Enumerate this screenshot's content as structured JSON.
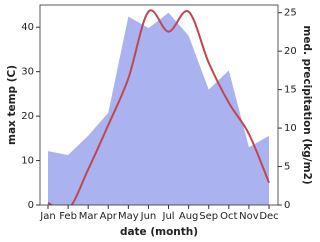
{
  "chart_data": {
    "type": "line",
    "x_label": "date (month)",
    "y_label": "max temp (C)",
    "y2_label": "med. precipitation (kg/m2)",
    "categories": [
      "Jan",
      "Feb",
      "Mar",
      "Apr",
      "May",
      "Jun",
      "Jul",
      "Aug",
      "Sep",
      "Oct",
      "Nov",
      "Dec"
    ],
    "series": [
      {
        "name": "med. precipitation",
        "type": "area",
        "axis": "y2",
        "color": "#aab3ef",
        "values": [
          7,
          6.5,
          9,
          12,
          24.5,
          23,
          25,
          22,
          15,
          17.5,
          7.5,
          9
        ]
      },
      {
        "name": "max temp",
        "type": "line",
        "color": "#c0474f",
        "values": [
          0.5,
          -1,
          8,
          18,
          28.5,
          43.5,
          39,
          43.5,
          32,
          23,
          16,
          5
        ]
      }
    ],
    "ylim": [
      0,
      45
    ],
    "yticks": [
      0,
      10,
      20,
      30,
      40
    ],
    "y2lim": [
      0,
      26
    ],
    "y2ticks": [
      0,
      5,
      10,
      15,
      20,
      25
    ]
  }
}
